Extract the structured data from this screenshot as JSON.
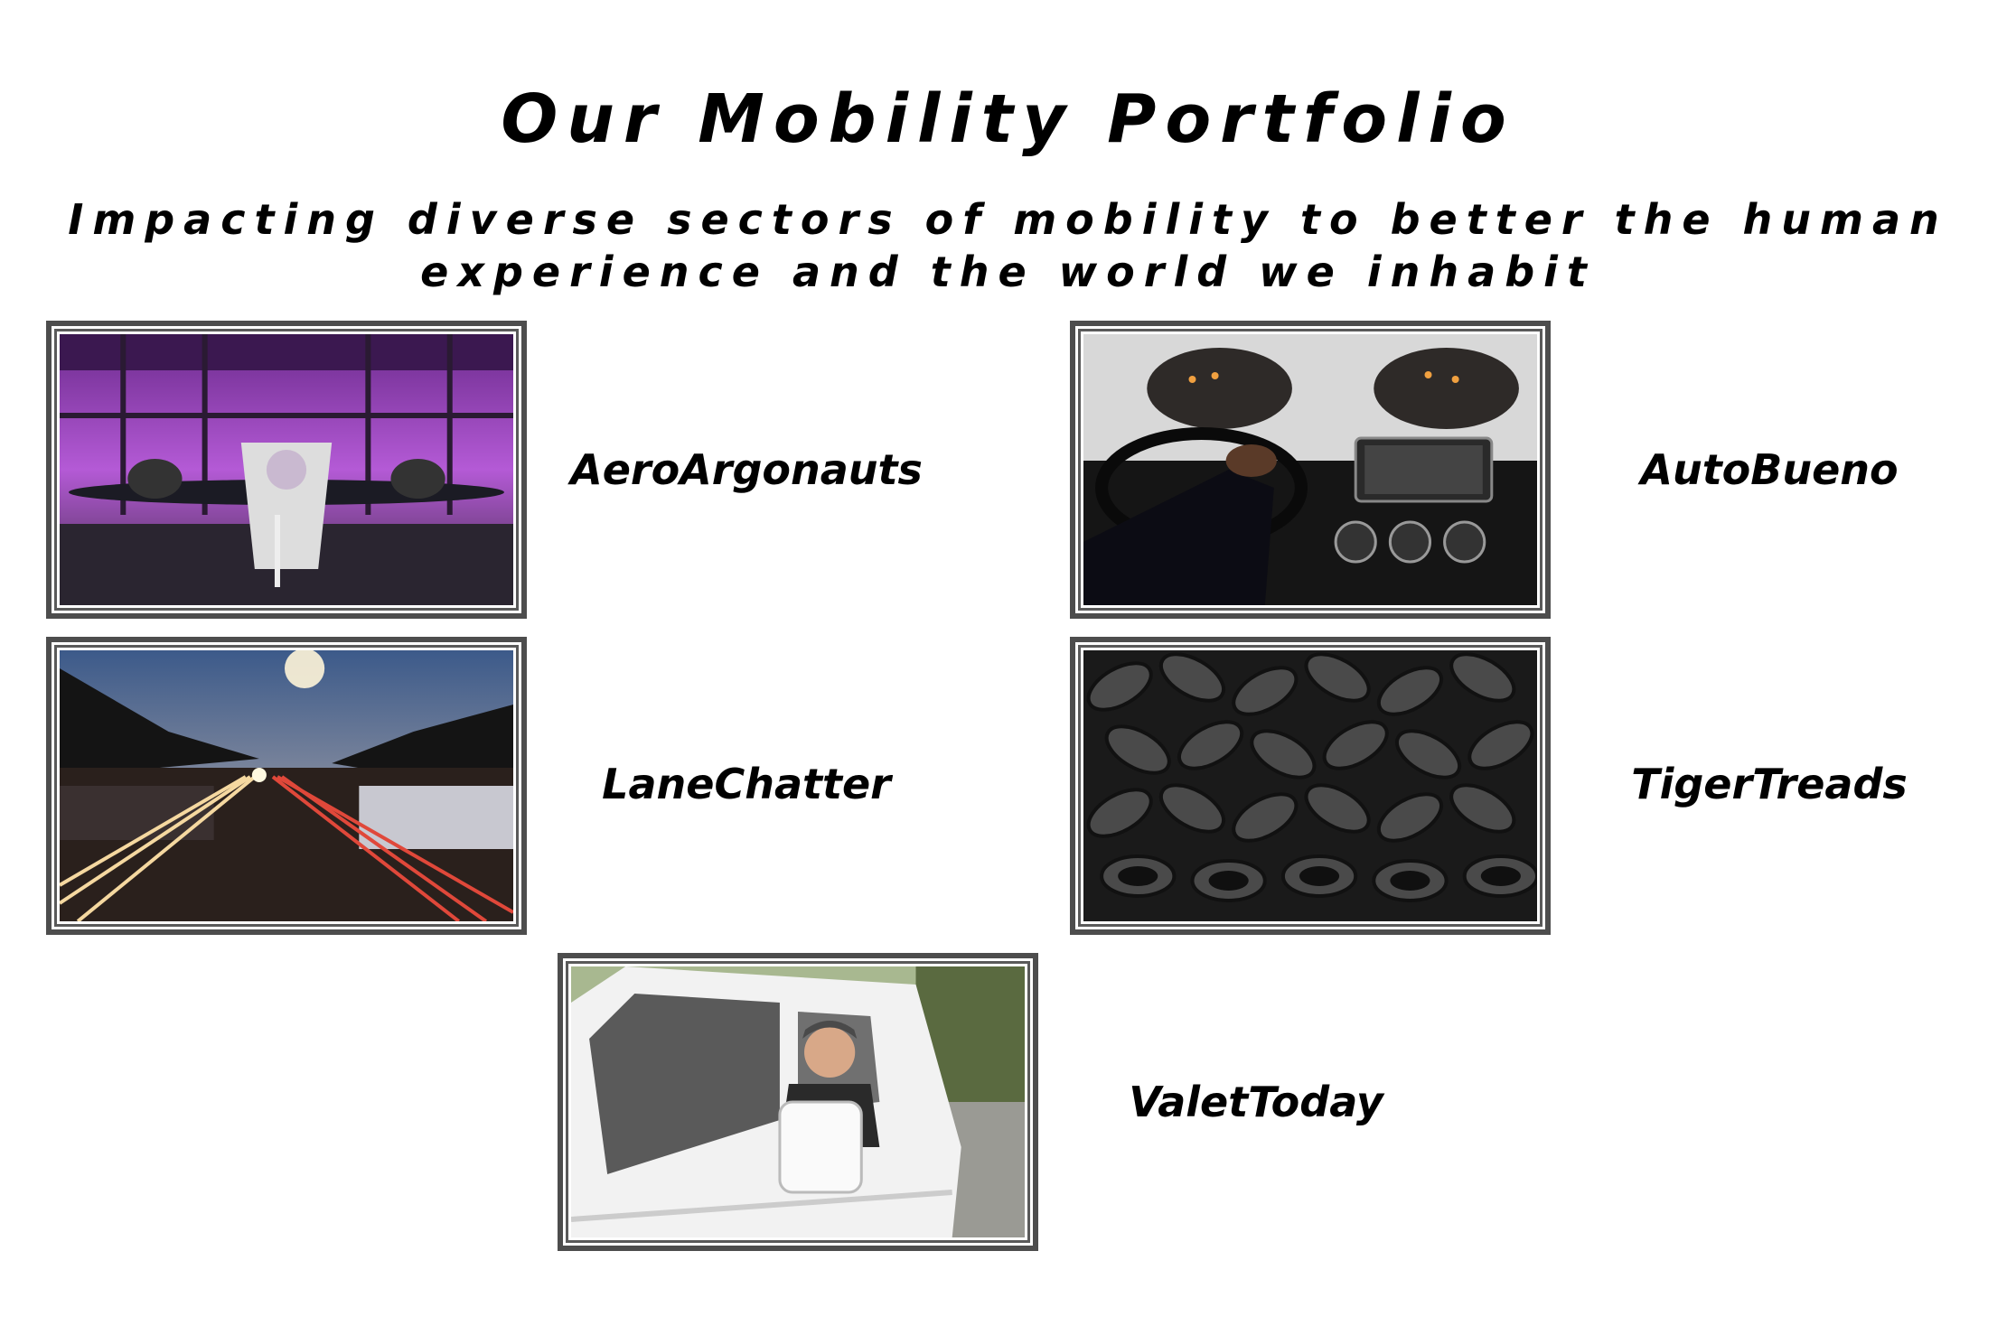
{
  "header": {
    "title": "Our Mobility Portfolio",
    "subtitle_line1": "Impacting diverse sectors of mobility to better the human",
    "subtitle_line2": "experience and the world we inhabit"
  },
  "portfolio": [
    {
      "name": "AeroArgonauts",
      "image": "airplane-hangar-photo"
    },
    {
      "name": "AutoBueno",
      "image": "car-dashboard-photo"
    },
    {
      "name": "LaneChatter",
      "image": "highway-light-trails-photo"
    },
    {
      "name": "TigerTreads",
      "image": "tire-pile-photo"
    },
    {
      "name": "ValetToday",
      "image": "van-driver-photo"
    }
  ]
}
